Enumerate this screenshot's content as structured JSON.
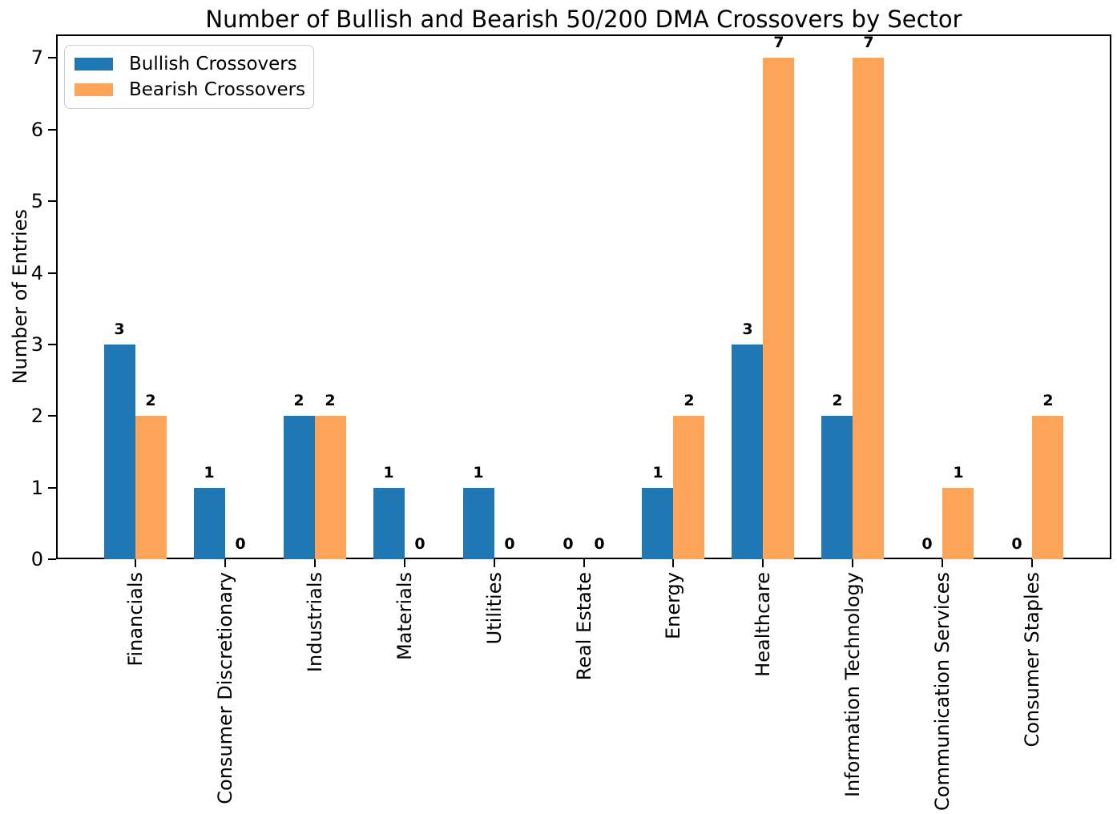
{
  "figure": {
    "background": "#ffffff",
    "spine_color": "#000000"
  },
  "chart_data": {
    "type": "bar",
    "title": "Number of Bullish and Bearish 50/200 DMA Crossovers by Sector",
    "xlabel": "",
    "ylabel": "Number of Entries",
    "categories": [
      "Financials",
      "Consumer Discretionary",
      "Industrials",
      "Materials",
      "Utilities",
      "Real Estate",
      "Energy",
      "Healthcare",
      "Information Technology",
      "Communication Services",
      "Consumer Staples"
    ],
    "series": [
      {
        "name": "Bullish Crossovers",
        "color": "#1f77b4",
        "values": [
          3,
          1,
          2,
          1,
          1,
          0,
          1,
          3,
          2,
          0,
          0
        ]
      },
      {
        "name": "Bearish Crossovers",
        "color": "#ffa55a",
        "values": [
          2,
          0,
          2,
          0,
          0,
          0,
          2,
          7,
          7,
          1,
          2
        ]
      }
    ],
    "bar_value_labels": [
      [
        "3",
        "1",
        "2",
        "1",
        "1",
        "0",
        "1",
        "3",
        "2",
        "0",
        "0"
      ],
      [
        "2",
        "0",
        "2",
        "0",
        "0",
        "0",
        "2",
        "7",
        "7",
        "1",
        "2"
      ]
    ],
    "yticks": [
      "0",
      "1",
      "2",
      "3",
      "4",
      "5",
      "6",
      "7"
    ],
    "ylim": [
      0,
      7.33
    ],
    "grid": false,
    "legend_position": "upper left",
    "x_tick_rotation": 90
  },
  "legend": {
    "items": [
      {
        "label": "Bullish Crossovers",
        "color": "#1f77b4"
      },
      {
        "label": "Bearish Crossovers",
        "color": "#ffa55a"
      }
    ]
  }
}
